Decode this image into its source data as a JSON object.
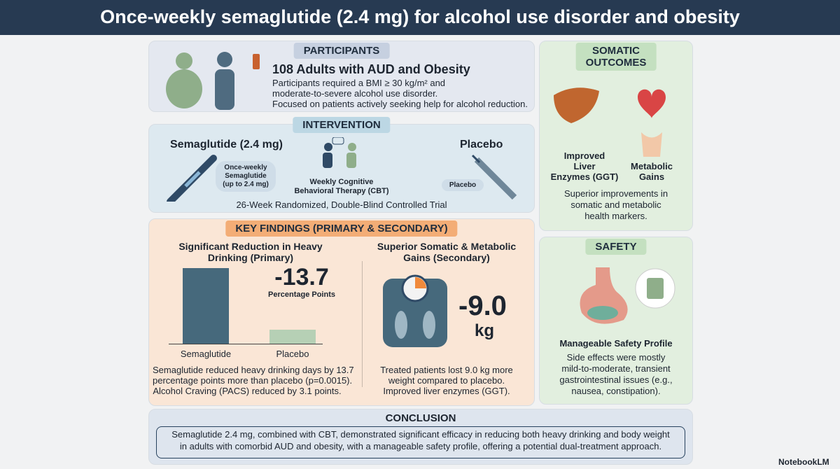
{
  "header": {
    "title": "Once-weekly semaglutide (2.4 mg) for alcohol use disorder and obesity"
  },
  "participants": {
    "label": "PARTICIPANTS",
    "heading": "108 Adults with AUD and Obesity",
    "lines": [
      "Participants required a BMI ≥ 30 kg/m² and",
      "moderate-to-severe alcohol use disorder.",
      "Focused on patients actively seeking help for alcohol reduction."
    ]
  },
  "intervention": {
    "label": "INTERVENTION",
    "drug": "Semaglutide (2.4 mg)",
    "drug_bubble": [
      "Once-weekly",
      "Semaglutide",
      "(up to 2.4 mg)"
    ],
    "therapy": [
      "Weekly Cognitive",
      "Behavioral Therapy (CBT)"
    ],
    "placebo": "Placebo",
    "placebo_bubble": "Placebo",
    "trial": "26-Week Randomized, Double-Blind Controlled Trial"
  },
  "key_findings": {
    "label": "KEY FINDINGS (PRIMARY & SECONDARY)",
    "primary": {
      "title": [
        "Significant Reduction in Heavy",
        "Drinking (Primary)"
      ],
      "stat": "-13.7",
      "stat_unit": "Percentage Points",
      "bar_labels": [
        "Semaglutide",
        "Placebo"
      ],
      "text": [
        "Semaglutide reduced heavy drinking days by 13.7",
        "percentage points more than placebo (p=0.0015).",
        "Alcohol Craving (PACS) reduced by 3.1 points."
      ]
    },
    "secondary": {
      "title": [
        "Superior Somatic & Metabolic",
        "Gains (Secondary)"
      ],
      "stat": "-9.0",
      "stat_unit": "kg",
      "text": [
        "Treated patients lost 9.0 kg more",
        "weight compared to placebo.",
        "Improved liver enzymes (GGT)."
      ]
    }
  },
  "somatic": {
    "label": [
      "SOMATIC",
      "OUTCOMES"
    ],
    "liver": [
      "Improved",
      "Liver",
      "Enzymes (GGT)"
    ],
    "metabolic": [
      "Metabolic",
      "Gains"
    ],
    "text": [
      "Superior improvements in",
      "somatic and metabolic",
      "health markers."
    ]
  },
  "safety": {
    "label": "SAFETY",
    "heading": "Manageable Safety Profile",
    "text": [
      "Side effects were mostly",
      "mild-to-moderate, transient",
      "gastrointestinal issues (e.g.,",
      "nausea, constipation)."
    ]
  },
  "conclusion": {
    "label": "CONCLUSION",
    "text": [
      "Semaglutide 2.4 mg, combined with CBT, demonstrated significant efficacy in reducing both heavy drinking and body weight",
      "in adults with comorbid AUD and obesity, with a manageable safety profile, offering a potential dual-treatment approach."
    ]
  },
  "footer": {
    "brand": "NotebookLM"
  }
}
